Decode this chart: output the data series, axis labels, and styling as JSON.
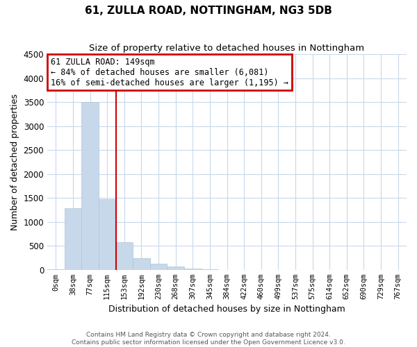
{
  "title": "61, ZULLA ROAD, NOTTINGHAM, NG3 5DB",
  "subtitle": "Size of property relative to detached houses in Nottingham",
  "xlabel": "Distribution of detached houses by size in Nottingham",
  "ylabel": "Number of detached properties",
  "bar_color": "#c8d8eb",
  "bar_edge_color": "#adc4d8",
  "background_color": "#ffffff",
  "grid_color": "#c8d8eb",
  "categories": [
    "0sqm",
    "38sqm",
    "77sqm",
    "115sqm",
    "153sqm",
    "192sqm",
    "230sqm",
    "268sqm",
    "307sqm",
    "345sqm",
    "384sqm",
    "422sqm",
    "460sqm",
    "499sqm",
    "537sqm",
    "575sqm",
    "614sqm",
    "652sqm",
    "690sqm",
    "729sqm",
    "767sqm"
  ],
  "values": [
    5,
    1280,
    3500,
    1480,
    570,
    240,
    125,
    70,
    25,
    5,
    2,
    1,
    0,
    0,
    0,
    0,
    0,
    0,
    0,
    0,
    0
  ],
  "ylim": [
    0,
    4500
  ],
  "yticks": [
    0,
    500,
    1000,
    1500,
    2000,
    2500,
    3000,
    3500,
    4000,
    4500
  ],
  "property_line_xidx": 3.5,
  "property_label": "61 ZULLA ROAD: 149sqm",
  "annotation_line1": "← 84% of detached houses are smaller (6,081)",
  "annotation_line2": "16% of semi-detached houses are larger (1,195) →",
  "annotation_box_color": "#ffffff",
  "annotation_border_color": "#cc0000",
  "line_color": "#cc0000",
  "footer_line1": "Contains HM Land Registry data © Crown copyright and database right 2024.",
  "footer_line2": "Contains public sector information licensed under the Open Government Licence v3.0."
}
